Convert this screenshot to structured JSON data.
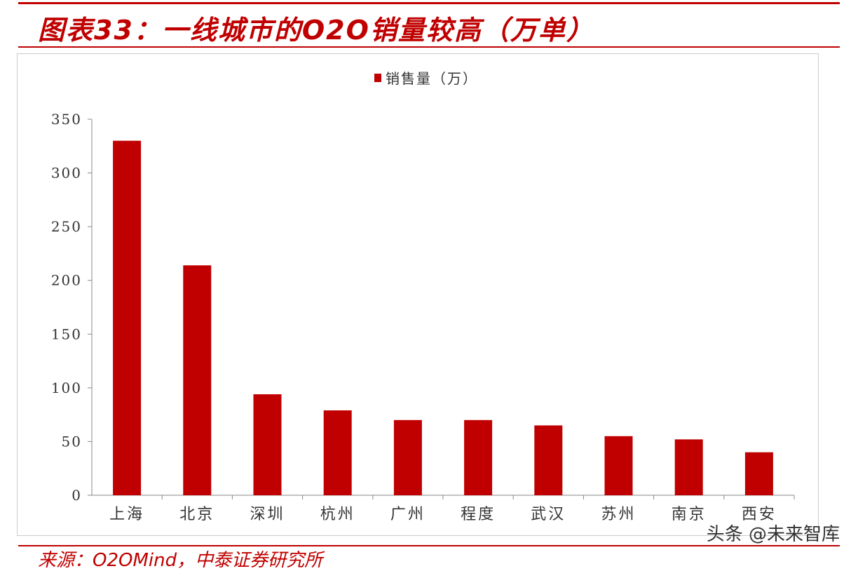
{
  "header": {
    "title": "图表33：一线城市的O2O销量较高（万单）"
  },
  "footer": {
    "source": "来源：O2OMind，中泰证券研究所",
    "watermark": "头条 @未来智库"
  },
  "chart_data": {
    "type": "bar",
    "title": "",
    "legend": [
      "销售量（万）"
    ],
    "legend_position": "top",
    "categories": [
      "上海",
      "北京",
      "深圳",
      "杭州",
      "广州",
      "程度",
      "武汉",
      "苏州",
      "南京",
      "西安"
    ],
    "series": [
      {
        "name": "销售量（万）",
        "values": [
          330,
          214,
          94,
          79,
          70,
          70,
          65,
          55,
          52,
          40
        ]
      }
    ],
    "ylim": [
      0,
      350
    ],
    "yticks": [
      0,
      50,
      100,
      150,
      200,
      250,
      300,
      350
    ],
    "grid": false,
    "color": "#c00000"
  }
}
